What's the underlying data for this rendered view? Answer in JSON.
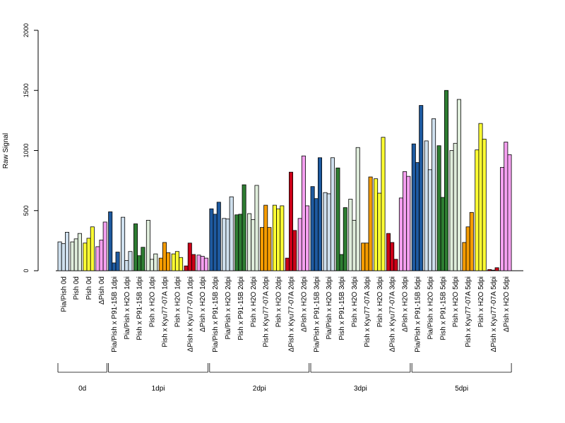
{
  "chart_data": {
    "type": "bar",
    "title": "",
    "xlabel": "",
    "ylabel": "Raw Signal",
    "ylim": [
      0,
      2000
    ],
    "yticks": [
      0,
      500,
      1000,
      1500,
      2000
    ],
    "grid": false,
    "legend": "none",
    "colors": {
      "Pia/Pish x P91-15B": "#1e5aa0",
      "Pia/Pish x H2O": "#cfe0ee",
      "Pish x P91-15B": "#2e7d32",
      "Pish x H2O": "#e0eedc",
      "Pish x Kyu77-07A": "#f59c00",
      "Pish": "#ffff33",
      "ΔPish x Kyu77-07A": "#cc0018",
      "ΔPish": "#f5a0f0"
    },
    "groups": [
      {
        "label": "0d",
        "categories": [
          {
            "label": "Pia/Pish 0d",
            "color_key": "Pia/Pish x H2O",
            "values": [
              240,
              225,
              320
            ]
          },
          {
            "label": "Pish 0d",
            "color_key": "Pish x H2O",
            "values": [
              240,
              265,
              310
            ]
          },
          {
            "label": "Pish 0d",
            "color_key": "Pish",
            "values": [
              230,
              270,
              365
            ]
          },
          {
            "label": "ΔPish 0d",
            "color_key": "ΔPish",
            "values": [
              200,
              255,
              405
            ]
          }
        ]
      },
      {
        "label": "1dpi",
        "categories": [
          {
            "label": "Pia/Pish x P91-15B 1dpi",
            "color_key": "Pia/Pish x P91-15B",
            "values": [
              490,
              65,
              155
            ]
          },
          {
            "label": "Pia/Pish x H2O 1dpi",
            "color_key": "Pia/Pish x H2O",
            "values": [
              445,
              85,
              160
            ]
          },
          {
            "label": "Pish x P91-15B 1dpi",
            "color_key": "Pish x P91-15B",
            "values": [
              390,
              125,
              195
            ]
          },
          {
            "label": "Pish x H2O 1dpi",
            "color_key": "Pish x H2O",
            "values": [
              420,
              95,
              140
            ]
          },
          {
            "label": "Pish x Kyu77-07A 1dpi",
            "color_key": "Pish x Kyu77-07A",
            "values": [
              105,
              235,
              150
            ]
          },
          {
            "label": "Pish x H2O 1dpi",
            "color_key": "Pish",
            "values": [
              140,
              160,
              110
            ]
          },
          {
            "label": "ΔPish x Kyu77-07A 1dpi",
            "color_key": "ΔPish x Kyu77-07A",
            "values": [
              40,
              230,
              135
            ]
          },
          {
            "label": "ΔPish x H2O 1dpi",
            "color_key": "ΔPish",
            "values": [
              130,
              120,
              105
            ]
          }
        ]
      },
      {
        "label": "2dpi",
        "categories": [
          {
            "label": "Pia/Pish x P91-15B 2dpi",
            "color_key": "Pia/Pish x P91-15B",
            "values": [
              515,
              470,
              570
            ]
          },
          {
            "label": "Pia/Pish x H2O 2dpi",
            "color_key": "Pia/Pish x H2O",
            "values": [
              435,
              430,
              615
            ]
          },
          {
            "label": "Pish x P91-15B 2dpi",
            "color_key": "Pish x P91-15B",
            "values": [
              465,
              470,
              715
            ]
          },
          {
            "label": "Pish x H2O 2dpi",
            "color_key": "Pish x H2O",
            "values": [
              475,
              425,
              710
            ]
          },
          {
            "label": "Pish x Kyu77-07A 2dpi",
            "color_key": "Pish x Kyu77-07A",
            "values": [
              360,
              545,
              360
            ]
          },
          {
            "label": "Pish x H2O 2dpi",
            "color_key": "Pish",
            "values": [
              545,
              515,
              540
            ]
          },
          {
            "label": "ΔPish x Kyu77-07A 2dpi",
            "color_key": "ΔPish x Kyu77-07A",
            "values": [
              105,
              820,
              335
            ]
          },
          {
            "label": "ΔPish x H2O 2dpi",
            "color_key": "ΔPish",
            "values": [
              435,
              955,
              540
            ]
          }
        ]
      },
      {
        "label": "3dpi",
        "categories": [
          {
            "label": "Pia/Pish x P91-15B 3dpi",
            "color_key": "Pia/Pish x P91-15B",
            "values": [
              700,
              600,
              940
            ]
          },
          {
            "label": "Pia/Pish x H2O 3dpi",
            "color_key": "Pia/Pish x H2O",
            "values": [
              650,
              640,
              940
            ]
          },
          {
            "label": "Pish x P91-15B 3dpi",
            "color_key": "Pish x P91-15B",
            "values": [
              855,
              135,
              525
            ]
          },
          {
            "label": "Pish x H2O 3dpi",
            "color_key": "Pish x H2O",
            "values": [
              595,
              420,
              1025
            ]
          },
          {
            "label": "Pish x Kyu77-07A 3dpi",
            "color_key": "Pish x Kyu77-07A",
            "values": [
              230,
              230,
              780
            ]
          },
          {
            "label": "Pish x H2O 3dpi",
            "color_key": "Pish",
            "values": [
              765,
              645,
              1110
            ]
          },
          {
            "label": "ΔPish x Kyu77-07A 3dpi",
            "color_key": "ΔPish x Kyu77-07A",
            "values": [
              310,
              235,
              95
            ]
          },
          {
            "label": "ΔPish x H2O 3dpi",
            "color_key": "ΔPish",
            "values": [
              605,
              825,
              785
            ]
          }
        ]
      },
      {
        "label": "5dpi",
        "categories": [
          {
            "label": "Pia/Pish x P91-15B 5dpi",
            "color_key": "Pia/Pish x P91-15B",
            "values": [
              1055,
              900,
              1375
            ]
          },
          {
            "label": "Pia/Pish x H2O 5dpi",
            "color_key": "Pia/Pish x H2O",
            "values": [
              1080,
              840,
              1265
            ]
          },
          {
            "label": "Pish x P91-15B 5dpi",
            "color_key": "Pish x P91-15B",
            "values": [
              1040,
              610,
              1500
            ]
          },
          {
            "label": "Pish x H2O 5dpi",
            "color_key": "Pish x H2O",
            "values": [
              1000,
              1060,
              1425
            ]
          },
          {
            "label": "Pish x Kyu77-07A 5dpi",
            "color_key": "Pish x Kyu77-07A",
            "values": [
              235,
              365,
              485
            ]
          },
          {
            "label": "Pish x H2O 5dpi",
            "color_key": "Pish",
            "values": [
              1005,
              1225,
              1095
            ]
          },
          {
            "label": "ΔPish x Kyu77-07A 5dpi",
            "color_key": "ΔPish x Kyu77-07A",
            "values": [
              10,
              5,
              25
            ]
          },
          {
            "label": "ΔPish x H2O 5dpi",
            "color_key": "ΔPish",
            "values": [
              860,
              1070,
              965
            ]
          }
        ]
      }
    ]
  }
}
